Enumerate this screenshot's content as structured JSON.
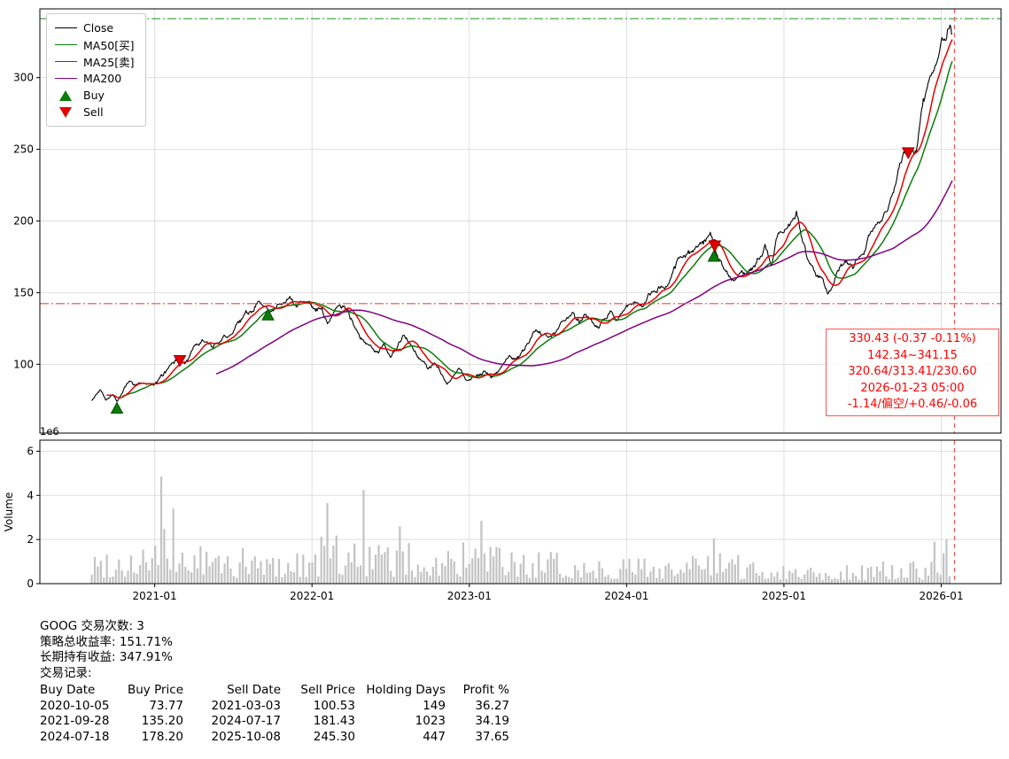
{
  "chart_data": {
    "type": "line",
    "title": "",
    "symbol": "GOOG",
    "xlim": [
      2020.27,
      2026.38
    ],
    "ylim": [
      52,
      348
    ],
    "yticks": [
      100,
      150,
      200,
      250,
      300
    ],
    "xticks": [
      {
        "v": 2021.0,
        "label": "2021-01"
      },
      {
        "v": 2022.0,
        "label": "2022-01"
      },
      {
        "v": 2023.0,
        "label": "2023-01"
      },
      {
        "v": 2024.0,
        "label": "2024-01"
      },
      {
        "v": 2025.0,
        "label": "2025-01"
      },
      {
        "v": 2026.0,
        "label": "2026-01"
      }
    ],
    "legend": [
      {
        "label": "Close",
        "swatch": "line",
        "color": "#000000"
      },
      {
        "label": "MA50[买]",
        "swatch": "line",
        "color": "#0a7d0a"
      },
      {
        "label": "MA25[卖]",
        "swatch": "line",
        "color": "#e40000"
      },
      {
        "label": "MA200",
        "swatch": "line",
        "color": "#800080"
      },
      {
        "label": "Buy",
        "swatch": "tri-up",
        "color": "#0a7d0a"
      },
      {
        "label": "Sell",
        "swatch": "tri-down",
        "color": "#e40000"
      }
    ],
    "close_anchors": [
      [
        2020.6,
        74
      ],
      [
        2020.63,
        79
      ],
      [
        2020.66,
        82
      ],
      [
        2020.69,
        76
      ],
      [
        2020.73,
        79
      ],
      [
        2020.76,
        73.8
      ],
      [
        2020.8,
        82
      ],
      [
        2020.84,
        88
      ],
      [
        2020.88,
        85
      ],
      [
        2020.92,
        88
      ],
      [
        2020.96,
        87
      ],
      [
        2021.0,
        86
      ],
      [
        2021.04,
        92
      ],
      [
        2021.08,
        96
      ],
      [
        2021.13,
        103
      ],
      [
        2021.17,
        101
      ],
      [
        2021.21,
        103
      ],
      [
        2021.25,
        110
      ],
      [
        2021.29,
        115
      ],
      [
        2021.33,
        117
      ],
      [
        2021.37,
        114
      ],
      [
        2021.42,
        119
      ],
      [
        2021.46,
        121
      ],
      [
        2021.5,
        123
      ],
      [
        2021.54,
        127
      ],
      [
        2021.58,
        135
      ],
      [
        2021.62,
        137
      ],
      [
        2021.66,
        144
      ],
      [
        2021.7,
        140
      ],
      [
        2021.74,
        135.2
      ],
      [
        2021.78,
        140
      ],
      [
        2021.82,
        146
      ],
      [
        2021.86,
        148
      ],
      [
        2021.9,
        142
      ],
      [
        2021.94,
        147
      ],
      [
        2021.98,
        145
      ],
      [
        2022.02,
        137
      ],
      [
        2022.06,
        139
      ],
      [
        2022.1,
        127
      ],
      [
        2022.14,
        136
      ],
      [
        2022.18,
        141
      ],
      [
        2022.22,
        138
      ],
      [
        2022.26,
        128
      ],
      [
        2022.3,
        119
      ],
      [
        2022.34,
        113
      ],
      [
        2022.38,
        112
      ],
      [
        2022.42,
        107
      ],
      [
        2022.46,
        113
      ],
      [
        2022.5,
        105
      ],
      [
        2022.54,
        111
      ],
      [
        2022.58,
        121
      ],
      [
        2022.62,
        116
      ],
      [
        2022.66,
        107
      ],
      [
        2022.7,
        101
      ],
      [
        2022.74,
        97
      ],
      [
        2022.78,
        101
      ],
      [
        2022.82,
        94
      ],
      [
        2022.86,
        87
      ],
      [
        2022.9,
        91
      ],
      [
        2022.94,
        96
      ],
      [
        2022.98,
        88
      ],
      [
        2023.02,
        90
      ],
      [
        2023.06,
        93
      ],
      [
        2023.1,
        95
      ],
      [
        2023.14,
        90
      ],
      [
        2023.18,
        94
      ],
      [
        2023.22,
        102
      ],
      [
        2023.26,
        106
      ],
      [
        2023.3,
        104
      ],
      [
        2023.34,
        108
      ],
      [
        2023.38,
        117
      ],
      [
        2023.42,
        124
      ],
      [
        2023.46,
        122
      ],
      [
        2023.5,
        119
      ],
      [
        2023.54,
        122
      ],
      [
        2023.58,
        130
      ],
      [
        2023.62,
        132
      ],
      [
        2023.66,
        137
      ],
      [
        2023.7,
        131
      ],
      [
        2023.74,
        138
      ],
      [
        2023.78,
        132
      ],
      [
        2023.82,
        125
      ],
      [
        2023.86,
        133
      ],
      [
        2023.9,
        137
      ],
      [
        2023.94,
        133
      ],
      [
        2023.98,
        140
      ],
      [
        2024.02,
        143
      ],
      [
        2024.06,
        145
      ],
      [
        2024.1,
        141
      ],
      [
        2024.14,
        148
      ],
      [
        2024.18,
        152
      ],
      [
        2024.22,
        157
      ],
      [
        2024.26,
        158
      ],
      [
        2024.3,
        168
      ],
      [
        2024.34,
        172
      ],
      [
        2024.38,
        176
      ],
      [
        2024.42,
        178
      ],
      [
        2024.46,
        184
      ],
      [
        2024.5,
        187
      ],
      [
        2024.53,
        191
      ],
      [
        2024.56,
        182
      ],
      [
        2024.6,
        171
      ],
      [
        2024.64,
        165
      ],
      [
        2024.68,
        157
      ],
      [
        2024.72,
        165
      ],
      [
        2024.76,
        162
      ],
      [
        2024.8,
        167
      ],
      [
        2024.84,
        173
      ],
      [
        2024.88,
        179
      ],
      [
        2024.92,
        170
      ],
      [
        2024.96,
        193
      ],
      [
        2025.0,
        196
      ],
      [
        2025.04,
        201
      ],
      [
        2025.08,
        206
      ],
      [
        2025.12,
        185
      ],
      [
        2025.16,
        171
      ],
      [
        2025.2,
        167
      ],
      [
        2025.24,
        162
      ],
      [
        2025.28,
        151
      ],
      [
        2025.32,
        160
      ],
      [
        2025.36,
        167
      ],
      [
        2025.4,
        173
      ],
      [
        2025.44,
        168
      ],
      [
        2025.48,
        177
      ],
      [
        2025.52,
        181
      ],
      [
        2025.56,
        193
      ],
      [
        2025.6,
        197
      ],
      [
        2025.64,
        204
      ],
      [
        2025.68,
        213
      ],
      [
        2025.72,
        233
      ],
      [
        2025.76,
        247
      ],
      [
        2025.8,
        254
      ],
      [
        2025.84,
        249
      ],
      [
        2025.88,
        283
      ],
      [
        2025.92,
        292
      ],
      [
        2025.96,
        302
      ],
      [
        2026.0,
        316
      ],
      [
        2026.03,
        326
      ],
      [
        2026.05,
        336
      ],
      [
        2026.07,
        330.43
      ]
    ],
    "noise": {
      "step": 3.0,
      "decay": 0.88,
      "hf": 1.2
    },
    "ma": [
      {
        "name": "MA50",
        "color": "#0a7d0a",
        "window": 40
      },
      {
        "name": "MA25",
        "color": "#e40000",
        "window": 20
      },
      {
        "name": "MA200",
        "color": "#800080",
        "window": 160
      }
    ],
    "hlines": [
      {
        "y": 341.15,
        "color": "#2ca02c",
        "dash": "10 3 2 3"
      },
      {
        "y": 142.34,
        "color": "#ff4444",
        "dash": "10 3 2 3"
      }
    ],
    "vline": {
      "x": 2026.084,
      "color": "#ff5555",
      "dash": "5 4"
    },
    "markers": {
      "buys": [
        [
          2020.76,
          69
        ],
        [
          2021.72,
          134
        ],
        [
          2024.555,
          175
        ]
      ],
      "sells": [
        [
          2021.16,
          103
        ],
        [
          2024.56,
          183
        ],
        [
          2025.79,
          248
        ]
      ]
    },
    "annotation": {
      "color": "#ff0000",
      "lines": [
        "330.43 (-0.37 -0.11%)",
        "142.34~341.15",
        "320.64/313.41/230.60",
        "2026-01-23 05:00",
        "-1.14/偏空/+0.46/-0.06"
      ]
    },
    "volume": {
      "label": "Volume",
      "offset_label": "1e6",
      "ylim": [
        0,
        6.5
      ],
      "yticks": [
        0,
        2,
        4,
        6
      ],
      "anchors": [
        [
          2020.6,
          1.4
        ],
        [
          2020.85,
          1.7
        ],
        [
          2021.05,
          2.3
        ],
        [
          2021.3,
          1.7
        ],
        [
          2021.6,
          1.4
        ],
        [
          2021.9,
          1.5
        ],
        [
          2022.15,
          2.1
        ],
        [
          2022.45,
          1.7
        ],
        [
          2022.75,
          1.6
        ],
        [
          2023.05,
          1.7
        ],
        [
          2023.4,
          1.3
        ],
        [
          2023.8,
          1.2
        ],
        [
          2024.1,
          1.2
        ],
        [
          2024.55,
          1.3
        ],
        [
          2024.9,
          1.0
        ],
        [
          2025.3,
          0.9
        ],
        [
          2025.7,
          0.9
        ],
        [
          2025.95,
          1.1
        ],
        [
          2026.07,
          1.6
        ]
      ],
      "spikes": [
        [
          2021.05,
          4.85
        ],
        [
          2021.12,
          3.4
        ],
        [
          2022.1,
          3.65
        ],
        [
          2022.33,
          4.25
        ],
        [
          2022.55,
          2.6
        ],
        [
          2023.08,
          2.85
        ],
        [
          2024.55,
          2.05
        ],
        [
          2025.95,
          1.9
        ],
        [
          2026.03,
          2.0
        ]
      ]
    }
  },
  "stats": {
    "line1": "GOOG 交易次数: 3",
    "line2": "策略总收益率: 151.71%",
    "line3": "长期持有收益: 347.91%",
    "line4": "交易记录:"
  },
  "trades": {
    "headers": [
      "Buy Date",
      "Buy Price",
      "Sell Date",
      "Sell Price",
      "Holding Days",
      "Profit %"
    ],
    "rows": [
      [
        "2020-10-05",
        "73.77",
        "2021-03-03",
        "100.53",
        "149",
        "36.27"
      ],
      [
        "2021-09-28",
        "135.20",
        "2024-07-17",
        "181.43",
        "1023",
        "34.19"
      ],
      [
        "2024-07-18",
        "178.20",
        "2025-10-08",
        "245.30",
        "447",
        "37.65"
      ]
    ]
  }
}
